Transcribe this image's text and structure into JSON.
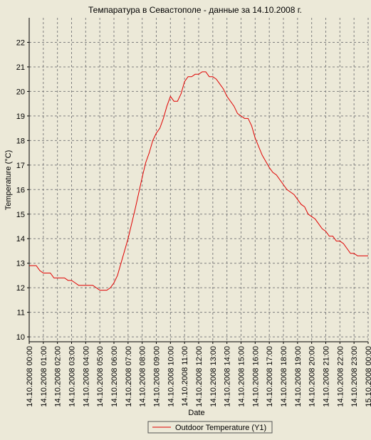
{
  "chart_data": {
    "type": "line",
    "title": "Темпаратура в Севастополе - данные за 14.10.2008 г.",
    "x_label": "Date",
    "y_label": "Temperature (°C)",
    "x": [
      0,
      0.5,
      0.75,
      1,
      1.5,
      1.75,
      2.5,
      2.75,
      3,
      3.25,
      3.5,
      4,
      4.5,
      5,
      5.5,
      5.75,
      6,
      6.25,
      6.5,
      7,
      7.5,
      8,
      8.25,
      8.5,
      8.75,
      9,
      9.25,
      9.5,
      9.75,
      10,
      10.25,
      10.5,
      10.75,
      11,
      11.25,
      11.5,
      11.75,
      12,
      12.25,
      12.5,
      12.75,
      13,
      13.25,
      13.5,
      13.75,
      14,
      14.5,
      14.75,
      15,
      15.25,
      15.5,
      15.75,
      16,
      16.5,
      17,
      17.25,
      17.5,
      17.75,
      18,
      18.25,
      18.5,
      18.75,
      19,
      19.25,
      19.5,
      19.75,
      20,
      20.25,
      20.5,
      20.75,
      21,
      21.25,
      21.5,
      21.75,
      22,
      22.25,
      22.5,
      22.75,
      23,
      23.25,
      24
    ],
    "series": [
      {
        "name": "Outdoor Temperature (Y1)",
        "color": "#e00000",
        "values": [
          12.9,
          12.9,
          12.7,
          12.6,
          12.6,
          12.4,
          12.4,
          12.3,
          12.3,
          12.2,
          12.1,
          12.1,
          12.1,
          11.9,
          11.9,
          12.0,
          12.2,
          12.5,
          13.0,
          14.0,
          15.2,
          16.5,
          17.1,
          17.5,
          18.0,
          18.3,
          18.5,
          18.9,
          19.4,
          19.8,
          19.6,
          19.6,
          19.9,
          20.4,
          20.6,
          20.6,
          20.7,
          20.7,
          20.8,
          20.8,
          20.6,
          20.6,
          20.5,
          20.3,
          20.1,
          19.8,
          19.4,
          19.1,
          19.0,
          18.9,
          18.9,
          18.6,
          18.1,
          17.4,
          16.9,
          16.7,
          16.6,
          16.4,
          16.2,
          16.0,
          15.9,
          15.8,
          15.6,
          15.4,
          15.3,
          15.0,
          14.9,
          14.8,
          14.6,
          14.4,
          14.3,
          14.1,
          14.1,
          13.9,
          13.9,
          13.8,
          13.6,
          13.4,
          13.4,
          13.3,
          13.3
        ]
      }
    ],
    "xlim": [
      0,
      24
    ],
    "xticks": [
      {
        "value": 0,
        "label": "14.10.2008 00:00"
      },
      {
        "value": 1,
        "label": "14.10.2008 01:00"
      },
      {
        "value": 2,
        "label": "14.10.2008 02:00"
      },
      {
        "value": 3,
        "label": "14.10.2008 03:00"
      },
      {
        "value": 4,
        "label": "14.10.2008 04:00"
      },
      {
        "value": 5,
        "label": "14.10.2008 05:00"
      },
      {
        "value": 6,
        "label": "14.10.2008 06:00"
      },
      {
        "value": 7,
        "label": "14.10.2008 07:00"
      },
      {
        "value": 8,
        "label": "14.10.2008 08:00"
      },
      {
        "value": 9,
        "label": "14.10.2008 09:00"
      },
      {
        "value": 10,
        "label": "14.10.2008 10:00"
      },
      {
        "value": 11,
        "label": "14.10.2008 11:00"
      },
      {
        "value": 12,
        "label": "14.10.2008 12:00"
      },
      {
        "value": 13,
        "label": "14.10.2008 13:00"
      },
      {
        "value": 14,
        "label": "14.10.2008 14:00"
      },
      {
        "value": 15,
        "label": "14.10.2008 15:00"
      },
      {
        "value": 16,
        "label": "14.10.2008 16:00"
      },
      {
        "value": 17,
        "label": "14.10.2008 17:00"
      },
      {
        "value": 18,
        "label": "14.10.2008 18:00"
      },
      {
        "value": 19,
        "label": "14.10.2008 19:00"
      },
      {
        "value": 20,
        "label": "14.10.2008 20:00"
      },
      {
        "value": 21,
        "label": "14.10.2008 21:00"
      },
      {
        "value": 22,
        "label": "14.10.2008 22:00"
      },
      {
        "value": 23,
        "label": "14.10.2008 23:00"
      },
      {
        "value": 24,
        "label": "15.10.2008 00:00"
      }
    ],
    "ylim": [
      9.8,
      23
    ],
    "yticks": [
      10,
      11,
      12,
      13,
      14,
      15,
      16,
      17,
      18,
      19,
      20,
      21,
      22
    ],
    "grid": true
  }
}
